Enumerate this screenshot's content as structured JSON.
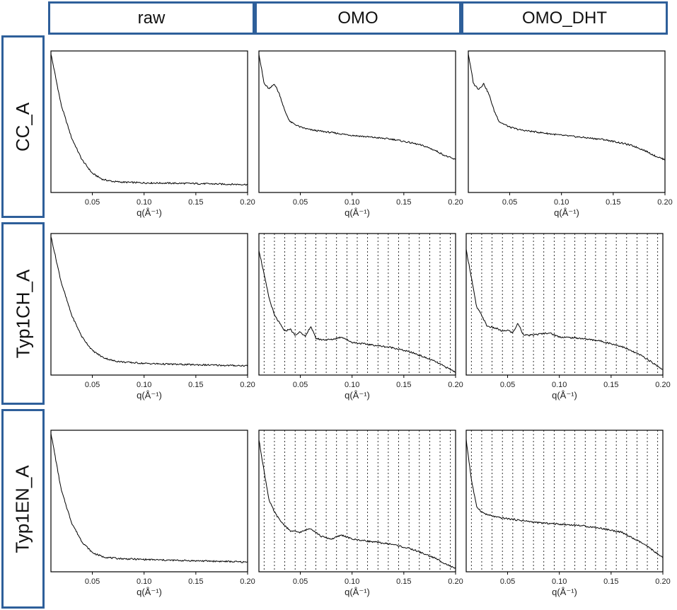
{
  "column_headers": [
    "raw",
    "OMO",
    "OMO_DHT"
  ],
  "row_headers": [
    "CC_A",
    "Typ1CH_A",
    "Typ1EN_A"
  ],
  "chart_data": [
    {
      "row": 0,
      "col": 0,
      "type": "line",
      "xlabel": "q(Å⁻¹)",
      "xlim": [
        0.01,
        0.2
      ],
      "ylim": [
        0,
        1
      ],
      "xticks": [
        "0.05",
        "0.10",
        "0.15",
        "0.20"
      ],
      "xtick_values": [
        0.05,
        0.1,
        0.15,
        0.2
      ],
      "grid": false,
      "x": [
        0.01,
        0.02,
        0.03,
        0.04,
        0.05,
        0.06,
        0.07,
        0.08,
        0.1,
        0.12,
        0.15,
        0.18,
        0.2
      ],
      "y": [
        1.0,
        0.62,
        0.38,
        0.22,
        0.12,
        0.075,
        0.06,
        0.055,
        0.05,
        0.048,
        0.045,
        0.04,
        0.038
      ]
    },
    {
      "row": 0,
      "col": 1,
      "type": "line",
      "xlabel": "q(Å⁻¹)",
      "xlim": [
        0.01,
        0.2
      ],
      "ylim": [
        0,
        1
      ],
      "xticks": [
        "0.05",
        "0.10",
        "0.15",
        "0.20"
      ],
      "xtick_values": [
        0.05,
        0.1,
        0.15,
        0.2
      ],
      "grid": false,
      "x": [
        0.01,
        0.015,
        0.02,
        0.025,
        0.03,
        0.035,
        0.04,
        0.05,
        0.06,
        0.08,
        0.1,
        0.12,
        0.14,
        0.16,
        0.17,
        0.18,
        0.19,
        0.2
      ],
      "y": [
        1.0,
        0.78,
        0.74,
        0.78,
        0.7,
        0.58,
        0.5,
        0.46,
        0.44,
        0.42,
        0.4,
        0.385,
        0.37,
        0.34,
        0.32,
        0.29,
        0.25,
        0.22
      ]
    },
    {
      "row": 0,
      "col": 2,
      "type": "line",
      "xlabel": "q(Å⁻¹)",
      "xlim": [
        0.01,
        0.2
      ],
      "ylim": [
        0,
        1
      ],
      "xticks": [
        "0.05",
        "0.10",
        "0.15",
        "0.20"
      ],
      "xtick_values": [
        0.05,
        0.1,
        0.15,
        0.2
      ],
      "grid": false,
      "x": [
        0.01,
        0.015,
        0.02,
        0.025,
        0.03,
        0.035,
        0.04,
        0.05,
        0.06,
        0.08,
        0.1,
        0.12,
        0.14,
        0.16,
        0.17,
        0.18,
        0.19,
        0.2
      ],
      "y": [
        1.0,
        0.78,
        0.74,
        0.78,
        0.7,
        0.58,
        0.5,
        0.46,
        0.44,
        0.42,
        0.4,
        0.385,
        0.37,
        0.34,
        0.32,
        0.29,
        0.25,
        0.22
      ]
    },
    {
      "row": 1,
      "col": 0,
      "type": "line",
      "xlabel": "q(Å⁻¹)",
      "xlim": [
        0.01,
        0.2
      ],
      "ylim": [
        0,
        1
      ],
      "xticks": [
        "0.05",
        "0.10",
        "0.15",
        "0.20"
      ],
      "xtick_values": [
        0.05,
        0.1,
        0.15,
        0.2
      ],
      "grid": false,
      "x": [
        0.01,
        0.02,
        0.03,
        0.04,
        0.05,
        0.06,
        0.07,
        0.08,
        0.1,
        0.12,
        0.15,
        0.18,
        0.2
      ],
      "y": [
        1.0,
        0.66,
        0.42,
        0.26,
        0.16,
        0.11,
        0.085,
        0.075,
        0.065,
        0.06,
        0.055,
        0.05,
        0.048
      ]
    },
    {
      "row": 1,
      "col": 1,
      "type": "line",
      "xlabel": "q(Å⁻¹)",
      "xlim": [
        0.01,
        0.2
      ],
      "ylim": [
        0,
        1
      ],
      "xticks": [
        "0.05",
        "0.10",
        "0.15",
        "0.20"
      ],
      "xtick_values": [
        0.05,
        0.1,
        0.15,
        0.2
      ],
      "grid": true,
      "x": [
        0.01,
        0.015,
        0.02,
        0.025,
        0.03,
        0.035,
        0.04,
        0.045,
        0.05,
        0.055,
        0.06,
        0.065,
        0.07,
        0.08,
        0.09,
        0.1,
        0.12,
        0.14,
        0.16,
        0.18,
        0.19,
        0.2
      ],
      "y": [
        0.9,
        0.72,
        0.54,
        0.42,
        0.36,
        0.3,
        0.32,
        0.27,
        0.3,
        0.26,
        0.34,
        0.25,
        0.24,
        0.24,
        0.26,
        0.22,
        0.2,
        0.18,
        0.14,
        0.08,
        0.04,
        0.0
      ]
    },
    {
      "row": 1,
      "col": 2,
      "type": "line",
      "xlabel": "q(Å⁻¹)",
      "xlim": [
        0.01,
        0.2
      ],
      "ylim": [
        0,
        1
      ],
      "xticks": [
        "0.05",
        "0.10",
        "0.15",
        "0.20"
      ],
      "xtick_values": [
        0.05,
        0.1,
        0.15,
        0.2
      ],
      "grid": true,
      "x": [
        0.01,
        0.015,
        0.02,
        0.025,
        0.03,
        0.035,
        0.04,
        0.045,
        0.05,
        0.055,
        0.06,
        0.065,
        0.07,
        0.08,
        0.09,
        0.1,
        0.12,
        0.14,
        0.16,
        0.18,
        0.19,
        0.2
      ],
      "y": [
        0.9,
        0.7,
        0.48,
        0.42,
        0.34,
        0.33,
        0.32,
        0.3,
        0.31,
        0.29,
        0.36,
        0.28,
        0.27,
        0.28,
        0.29,
        0.26,
        0.25,
        0.23,
        0.19,
        0.12,
        0.07,
        0.02
      ]
    },
    {
      "row": 2,
      "col": 0,
      "type": "line",
      "xlabel": "q(Å⁻¹)",
      "xlim": [
        0.01,
        0.2
      ],
      "ylim": [
        0,
        1
      ],
      "xticks": [
        "0.05",
        "0.10",
        "0.15",
        "0.20"
      ],
      "xtick_values": [
        0.05,
        0.1,
        0.15,
        0.2
      ],
      "grid": false,
      "x": [
        0.01,
        0.02,
        0.03,
        0.04,
        0.05,
        0.06,
        0.07,
        0.08,
        0.1,
        0.12,
        0.15,
        0.18,
        0.2
      ],
      "y": [
        1.0,
        0.58,
        0.34,
        0.2,
        0.12,
        0.09,
        0.08,
        0.075,
        0.07,
        0.065,
        0.06,
        0.055,
        0.05
      ]
    },
    {
      "row": 2,
      "col": 1,
      "type": "line",
      "xlabel": "q(Å⁻¹)",
      "xlim": [
        0.01,
        0.2
      ],
      "ylim": [
        0,
        1
      ],
      "xticks": [
        "0.05",
        "0.10",
        "0.15",
        "0.20"
      ],
      "xtick_values": [
        0.05,
        0.1,
        0.15,
        0.2
      ],
      "grid": true,
      "x": [
        0.01,
        0.015,
        0.02,
        0.025,
        0.03,
        0.035,
        0.04,
        0.05,
        0.06,
        0.07,
        0.08,
        0.09,
        0.1,
        0.12,
        0.14,
        0.16,
        0.18,
        0.19,
        0.2
      ],
      "y": [
        0.95,
        0.72,
        0.5,
        0.42,
        0.36,
        0.32,
        0.28,
        0.27,
        0.3,
        0.24,
        0.22,
        0.25,
        0.22,
        0.2,
        0.18,
        0.14,
        0.08,
        0.04,
        0.0
      ]
    },
    {
      "row": 2,
      "col": 2,
      "type": "line",
      "xlabel": "q(Å⁻¹)",
      "xlim": [
        0.01,
        0.2
      ],
      "ylim": [
        0,
        1
      ],
      "xticks": [
        "0.05",
        "0.10",
        "0.15",
        "0.20"
      ],
      "xtick_values": [
        0.05,
        0.1,
        0.15,
        0.2
      ],
      "grid": true,
      "x": [
        0.01,
        0.015,
        0.02,
        0.025,
        0.03,
        0.04,
        0.05,
        0.06,
        0.07,
        0.08,
        0.1,
        0.12,
        0.14,
        0.16,
        0.17,
        0.18,
        0.19,
        0.2
      ],
      "y": [
        0.95,
        0.66,
        0.46,
        0.42,
        0.4,
        0.38,
        0.37,
        0.36,
        0.35,
        0.34,
        0.33,
        0.32,
        0.3,
        0.27,
        0.23,
        0.19,
        0.14,
        0.08
      ]
    }
  ]
}
